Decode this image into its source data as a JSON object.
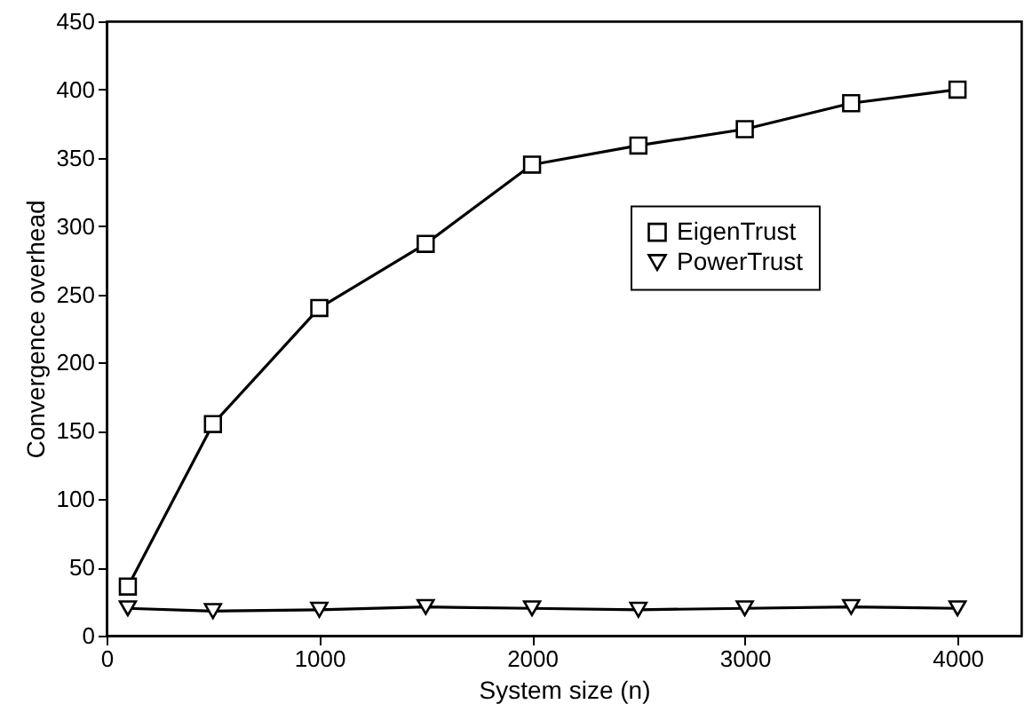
{
  "chart_data": {
    "type": "line",
    "xlabel": "System size (n)",
    "ylabel": "Convergence overhead",
    "x": [
      100,
      500,
      1000,
      1500,
      2000,
      2500,
      3000,
      3500,
      4000
    ],
    "series": [
      {
        "name": "EigenTrust",
        "color": "#000000",
        "marker": "square",
        "values": [
          36,
          155,
          240,
          287,
          345,
          359,
          371,
          390,
          400
        ]
      },
      {
        "name": "PowerTrust",
        "color": "#000000",
        "marker": "triangle-down",
        "values": [
          20,
          18,
          19,
          21,
          20,
          19,
          20,
          21,
          20
        ]
      }
    ],
    "xlim": [
      0,
      4300
    ],
    "xticks": [
      0,
      1000,
      2000,
      3000,
      4000
    ],
    "ylim": [
      0,
      450
    ],
    "yticks": [
      0,
      50,
      100,
      150,
      200,
      250,
      300,
      350,
      400,
      450
    ],
    "grid": false,
    "legend": "right",
    "line_style": "solid"
  }
}
